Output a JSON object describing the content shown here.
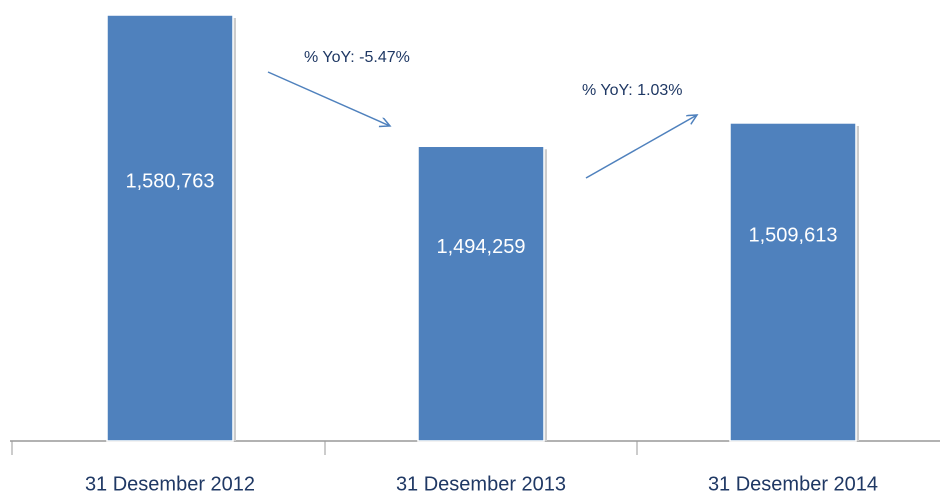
{
  "chart_data": {
    "type": "bar",
    "categories": [
      "31 Desember 2012",
      "31 Desember 2013",
      "31 Desember 2014"
    ],
    "values": [
      1580763,
      1494259,
      1509613
    ],
    "value_labels": [
      "1,580,763",
      "1,494,259",
      "1,509,613"
    ],
    "color": "#4f81bd",
    "ylim": [
      1300000,
      1590000
    ],
    "annotations": [
      "% YoY: -5.47%",
      "% YoY: 1.03%"
    ]
  }
}
